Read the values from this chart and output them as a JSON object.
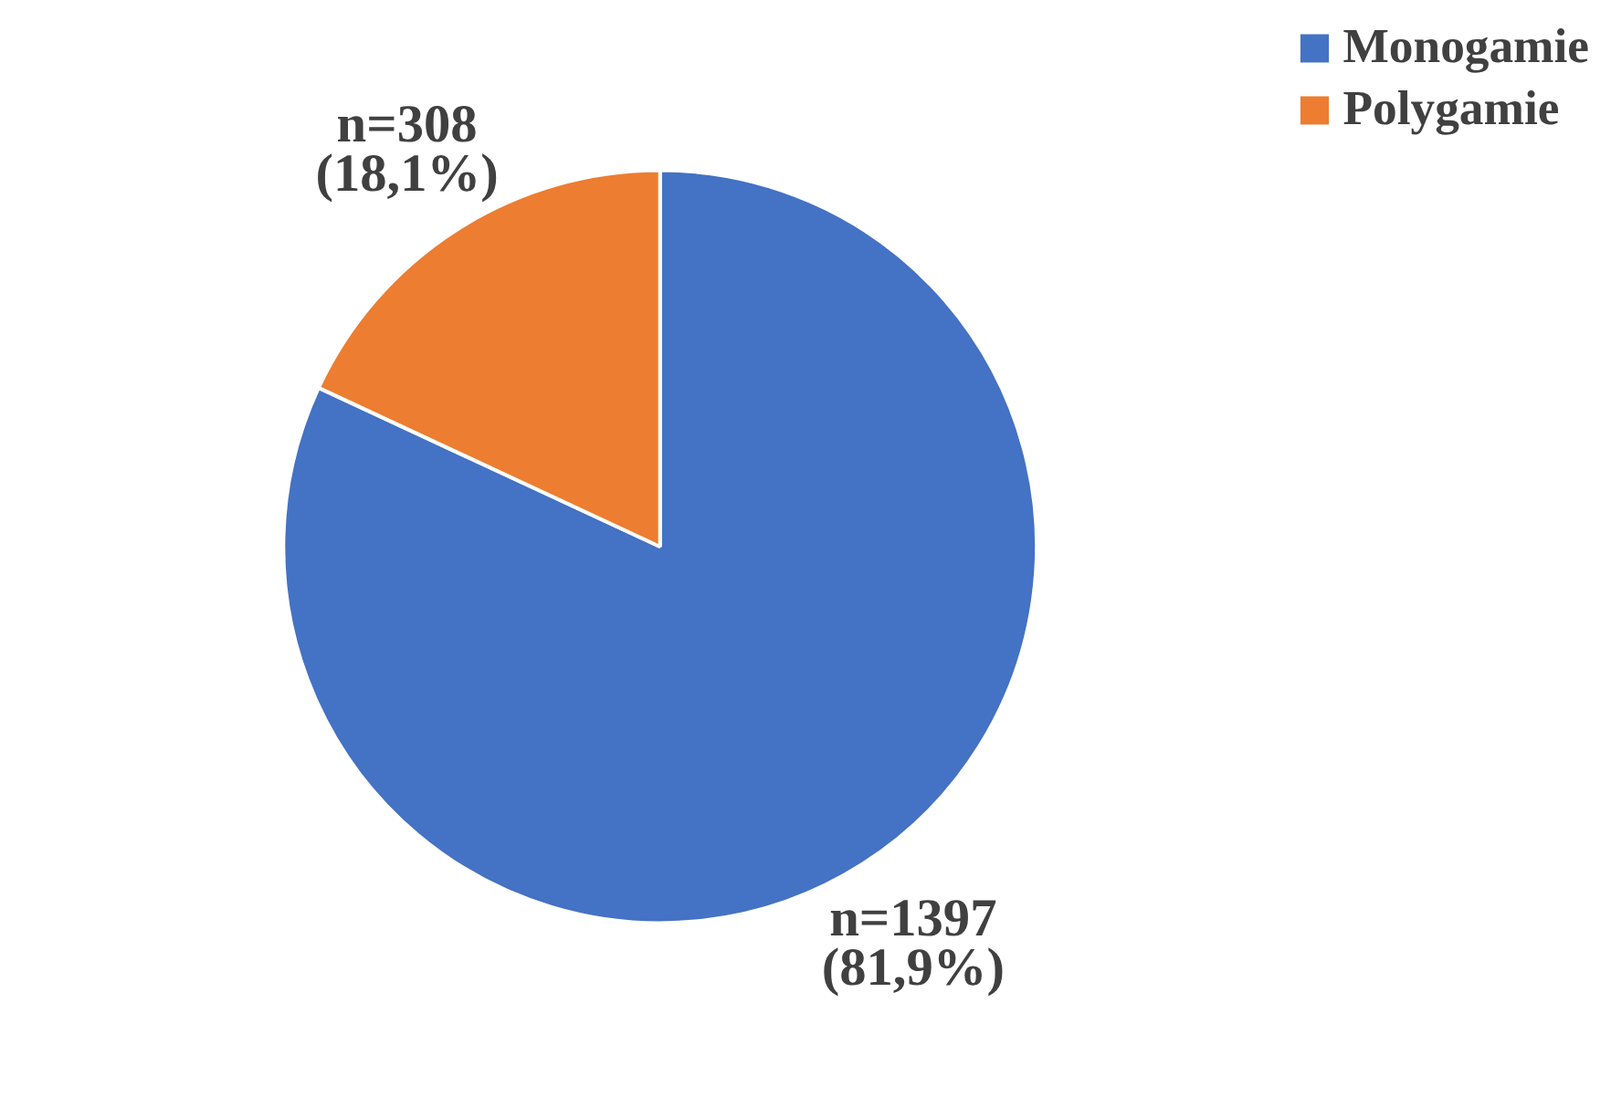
{
  "chart_data": {
    "type": "pie",
    "categories": [
      "Monogamie",
      "Polygamie"
    ],
    "values": [
      1397,
      308
    ],
    "colors": [
      "#4472c4",
      "#ed7d31"
    ],
    "value_labels": [
      "n=1397\n(81,9%)",
      "n=308\n(18,1%)"
    ],
    "legend": "top right"
  }
}
